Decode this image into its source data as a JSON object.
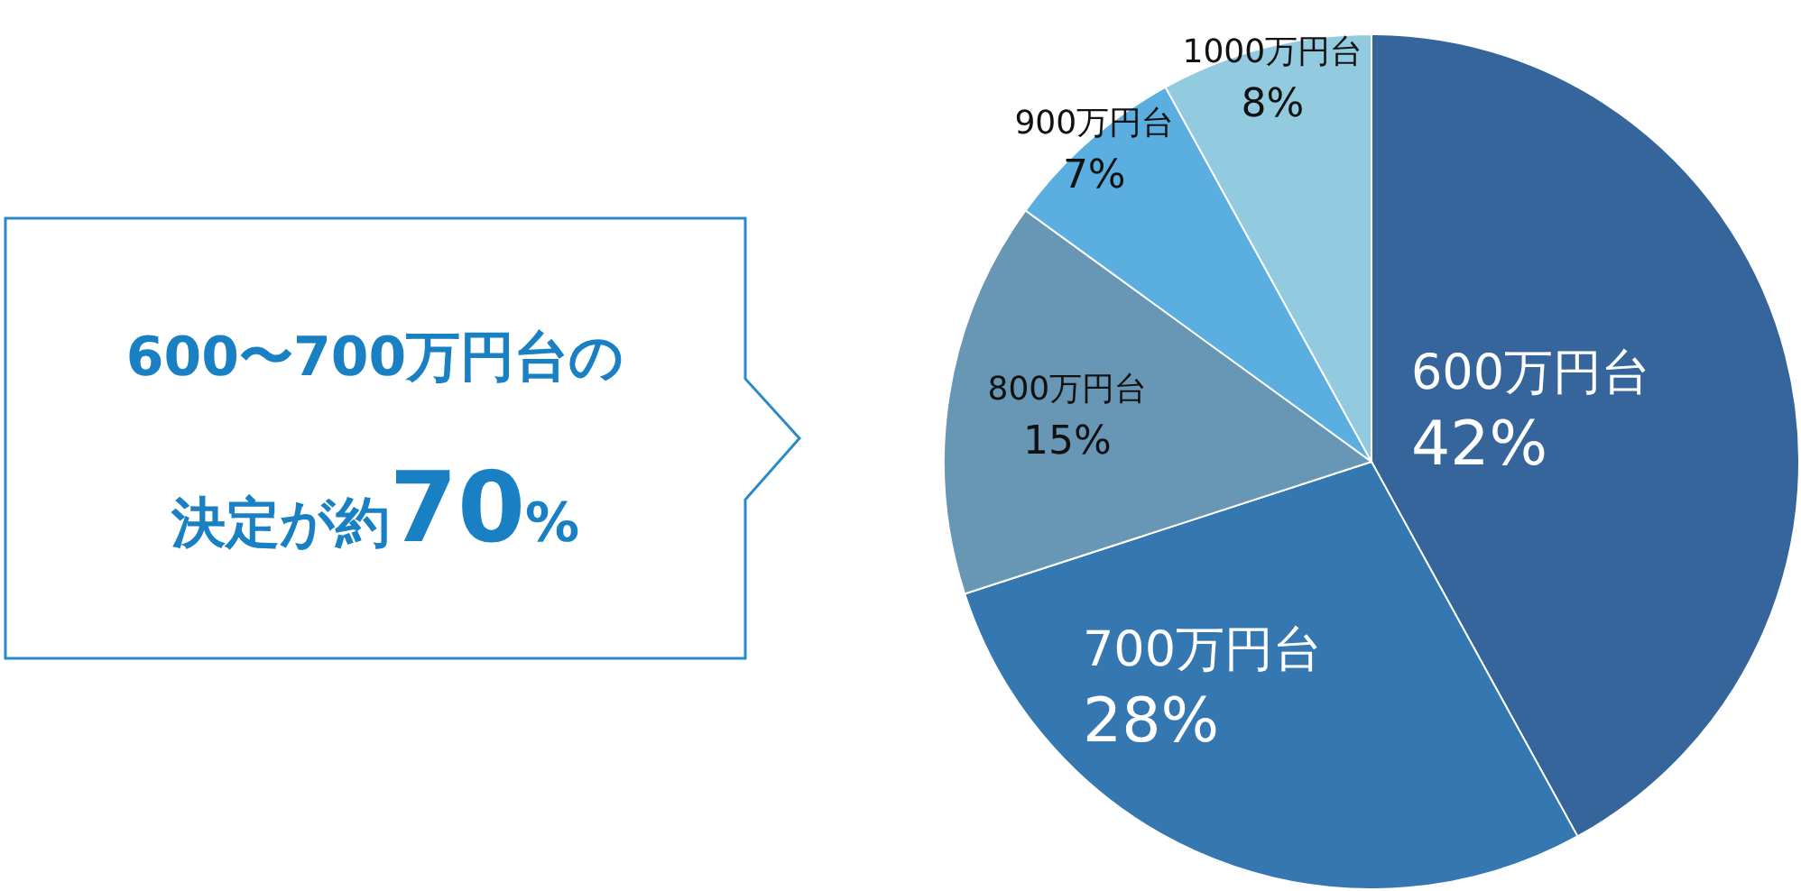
{
  "chart_data": {
    "type": "pie",
    "categories": [
      "600万円台",
      "700万円台",
      "800万円台",
      "900万円台",
      "1000万円台"
    ],
    "values": [
      42,
      28,
      15,
      7,
      8
    ],
    "value_labels": [
      "42%",
      "28%",
      "15%",
      "7%",
      "8%"
    ],
    "colors": [
      "#35659a",
      "#3577b0",
      "#6897b5",
      "#5aafe0",
      "#92cbe0"
    ],
    "annotations": [
      "600〜700万円台の",
      "決定が約**70**%"
    ]
  }
}
